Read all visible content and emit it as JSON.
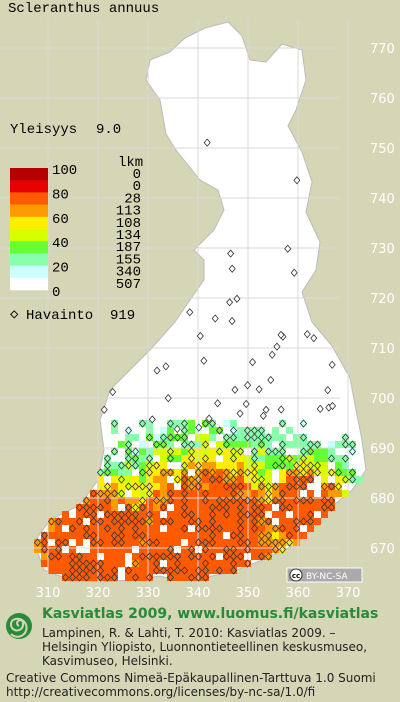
{
  "title": "Scleranthus annuus",
  "frequency": {
    "label": "Yleisyys",
    "value": "9.0"
  },
  "legend": {
    "scale_labels": [
      100,
      80,
      60,
      40,
      20,
      0
    ],
    "unit": "lkm",
    "counts": [
      0,
      0,
      28,
      113,
      108,
      134,
      187,
      155,
      340,
      507
    ],
    "colors": [
      "#b40000",
      "#e60000",
      "#ff5a00",
      "#ff9a00",
      "#ffee00",
      "#d6ff00",
      "#66ff33",
      "#88ffaa",
      "#ccffff",
      "#ffffff"
    ]
  },
  "observations": {
    "label": "Havainto",
    "count": 919
  },
  "grid": {
    "y_labels": [
      770,
      760,
      750,
      740,
      730,
      720,
      710,
      700,
      690,
      680,
      670
    ],
    "x_labels": [
      310,
      320,
      330,
      340,
      350,
      360,
      370
    ]
  },
  "license_badge": "BY-NC-SA",
  "footer": {
    "heading": "Kasviatlas 2009, www.luomus.fi/kasviatlas",
    "citation": [
      "Lampinen, R. & Lahti, T. 2010: Kasviatlas 2009. –",
      "Helsingin Yliopisto, Luonnontieteellinen keskusmuseo,",
      "Kasvimuseo, Helsinki."
    ],
    "license": [
      "Creative Commons Nimeä-Epäkaupallinen-Tarttuva 1.0 Suomi",
      "http://creativecommons.org/licenses/by-nc-sa/1.0/fi"
    ]
  }
}
